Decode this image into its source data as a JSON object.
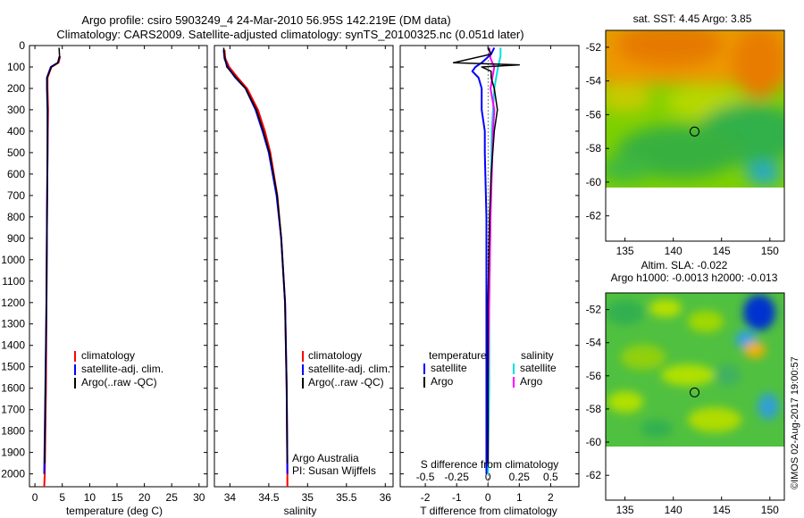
{
  "header": {
    "line1": "Argo profile: csiro 5903249_4 24-Mar-2010 56.95S 142.219E (DM data)",
    "line2": "Climatology: CARS2009. Satellite-adjusted climatology: synTS_20100325.nc (0.051d later)"
  },
  "colors": {
    "climatology": "#ff0000",
    "satellite": "#0000ff",
    "argo": "#000000",
    "sal_satellite": "#00e0e0",
    "sal_argo": "#ff00ff"
  },
  "chart_data": [
    {
      "type": "line",
      "id": "temperature",
      "xlabel": "temperature (deg C)",
      "ylabel": "",
      "xlim": [
        -1,
        31.5
      ],
      "ylim": [
        2060,
        0
      ],
      "x_ticks": [
        "0",
        "5",
        "10",
        "15",
        "20",
        "25",
        "30"
      ],
      "x_tick_values": [
        0,
        5,
        10,
        15,
        20,
        25,
        30
      ],
      "y_ticks": [
        "0",
        "100",
        "200",
        "300",
        "400",
        "500",
        "600",
        "700",
        "800",
        "900",
        "1000",
        "1100",
        "1200",
        "1300",
        "1400",
        "1500",
        "1600",
        "1700",
        "1800",
        "1900",
        "2000"
      ],
      "y_tick_values": [
        0,
        100,
        200,
        300,
        400,
        500,
        600,
        700,
        800,
        900,
        1000,
        1100,
        1200,
        1300,
        1400,
        1500,
        1600,
        1700,
        1800,
        1900,
        2000
      ],
      "legend": [
        "climatology",
        "satellite-adj. clim.",
        "Argo(..raw -QC)"
      ],
      "series": [
        {
          "name": "climatology",
          "depth": [
            50,
            80,
            100,
            150,
            200,
            300,
            500,
            800,
            1200,
            1600,
            2000,
            2060
          ],
          "values": [
            4.6,
            4.3,
            3.0,
            2.3,
            2.3,
            2.4,
            2.3,
            2.2,
            2.1,
            2.0,
            1.8,
            1.7
          ]
        },
        {
          "name": "satellite-adj. clim.",
          "depth": [
            50,
            80,
            100,
            150,
            200,
            300,
            500,
            800,
            1200,
            1600,
            2000
          ],
          "values": [
            4.5,
            4.2,
            2.9,
            2.2,
            2.2,
            2.3,
            2.3,
            2.2,
            2.1,
            1.9,
            1.7
          ]
        },
        {
          "name": "Argo(..raw -QC)",
          "depth": [
            10,
            50,
            80,
            100,
            150,
            200,
            300,
            500,
            800,
            1200,
            1600,
            1950
          ],
          "values": [
            4.4,
            4.5,
            4.2,
            3.0,
            2.2,
            2.2,
            2.3,
            2.3,
            2.2,
            2.1,
            1.9,
            1.8
          ]
        }
      ]
    },
    {
      "type": "line",
      "id": "salinity",
      "xlabel": "salinity",
      "ylabel": "",
      "xlim": [
        33.8,
        36.1
      ],
      "ylim": [
        2060,
        0
      ],
      "x_ticks": [
        "34",
        "34.5",
        "35",
        "35.5",
        "36"
      ],
      "x_tick_values": [
        34,
        34.5,
        35,
        35.5,
        36
      ],
      "legend": [
        "climatology",
        "satellite-adj. clim.",
        "Argo(..raw -QC)"
      ],
      "annotation": [
        "Argo Australia",
        "PI: Susan Wijffels"
      ],
      "series": [
        {
          "name": "climatology",
          "depth": [
            20,
            60,
            100,
            150,
            200,
            300,
            400,
            500,
            700,
            900,
            1200,
            1600,
            2000,
            2060
          ],
          "values": [
            33.93,
            33.94,
            33.99,
            34.1,
            34.22,
            34.36,
            34.45,
            34.52,
            34.61,
            34.66,
            34.71,
            34.73,
            34.74,
            34.74
          ]
        },
        {
          "name": "satellite-adj. clim.",
          "depth": [
            20,
            60,
            100,
            150,
            200,
            300,
            400,
            500,
            700,
            900,
            1200,
            1600,
            2000
          ],
          "values": [
            33.92,
            33.93,
            33.97,
            34.07,
            34.2,
            34.33,
            34.42,
            34.5,
            34.6,
            34.66,
            34.71,
            34.73,
            34.74
          ]
        },
        {
          "name": "Argo(..raw -QC)",
          "depth": [
            10,
            50,
            100,
            150,
            200,
            300,
            400,
            500,
            700,
            900,
            1200,
            1600,
            1950
          ],
          "values": [
            33.92,
            33.93,
            33.96,
            34.08,
            34.2,
            34.34,
            34.43,
            34.51,
            34.61,
            34.66,
            34.71,
            34.73,
            34.74
          ]
        }
      ]
    },
    {
      "type": "line",
      "id": "difference",
      "xlabel": "T difference from climatology",
      "ylabel": "",
      "xlim": [
        -2.8,
        2.9
      ],
      "ylim": [
        2060,
        0
      ],
      "x_ticks": [
        "-2",
        "-1",
        "0",
        "1",
        "2"
      ],
      "x_tick_values": [
        -2,
        -1,
        0,
        1,
        2
      ],
      "s_ticks": [
        "-0.5",
        "-0.25",
        "0",
        "0.25",
        "0.5"
      ],
      "s_label": "S difference from climatology",
      "legend_headers": [
        "temperature",
        "salinity"
      ],
      "legend": [
        "satellite",
        "Argo",
        "satellite",
        "Argo"
      ],
      "series": [
        {
          "name": "temperature satellite",
          "depth": [
            10,
            40,
            80,
            100,
            120,
            150,
            200,
            300,
            400,
            500,
            800,
            1200,
            1600,
            2000
          ],
          "values": [
            0.2,
            0.1,
            -0.2,
            -0.4,
            -0.5,
            -0.3,
            -0.2,
            -0.2,
            -0.1,
            -0.1,
            -0.05,
            -0.05,
            -0.05,
            -0.05
          ]
        },
        {
          "name": "temperature Argo",
          "depth": [
            10,
            40,
            80,
            90,
            100,
            120,
            150,
            200,
            300,
            400,
            600,
            800,
            1200,
            1600,
            1950
          ],
          "values": [
            0,
            0.1,
            -1.1,
            1.0,
            -0.2,
            0.1,
            0.1,
            0.2,
            0.3,
            0.2,
            0.1,
            0.05,
            0,
            0,
            0
          ]
        },
        {
          "name": "salinity satellite",
          "depth": [
            10,
            50,
            100,
            200,
            400,
            800,
            1200,
            1600,
            2000
          ],
          "values": [
            0.1,
            0.1,
            0.08,
            0.05,
            0.03,
            0.02,
            0.01,
            0.01,
            0
          ],
          "unit": "S"
        },
        {
          "name": "salinity Argo",
          "depth": [
            10,
            60,
            100,
            200,
            300,
            400,
            600,
            800,
            1200,
            1600,
            1950
          ],
          "values": [
            0.01,
            0.02,
            0.05,
            0.02,
            0.05,
            0.04,
            0.03,
            0.02,
            0.01,
            0,
            0
          ],
          "unit": "S"
        }
      ]
    },
    {
      "type": "heatmap",
      "id": "sst_map",
      "title": "sat. SST: 4.45  Argo: 3.85",
      "xlim": [
        133,
        151.5
      ],
      "ylim": [
        -63.5,
        -51
      ],
      "x_ticks": [
        "135",
        "140",
        "145",
        "150"
      ],
      "y_ticks": [
        "-52",
        "-54",
        "-56",
        "-58",
        "-60",
        "-62"
      ],
      "marker": {
        "lon": 142.2,
        "lat": -57
      }
    },
    {
      "type": "heatmap",
      "id": "sla_map",
      "title": "Altim. SLA: -0.022",
      "subtitle": "Argo h1000: -0.0013  h2000: -0.013",
      "xlim": [
        133,
        151.5
      ],
      "ylim": [
        -63.5,
        -51
      ],
      "x_ticks": [
        "135",
        "140",
        "145",
        "150"
      ],
      "y_ticks": [
        "-52",
        "-54",
        "-56",
        "-58",
        "-60",
        "-62"
      ],
      "marker": {
        "lon": 142.2,
        "lat": -57
      }
    }
  ],
  "credit": "©IMOS 02-Aug-2017 19:00:57"
}
